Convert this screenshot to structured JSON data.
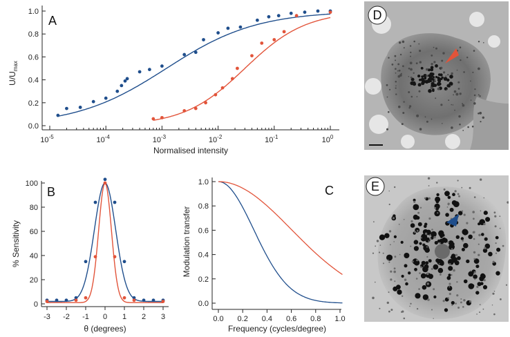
{
  "colors": {
    "blue": "#1f4e8c",
    "red": "#e2543a",
    "axis": "#222222"
  },
  "panels": {
    "A": "A",
    "B": "B",
    "C": "C",
    "D": "D",
    "E": "E"
  },
  "chart_data": [
    {
      "id": "A",
      "type": "scatter",
      "xscale": "log",
      "xlabel": "Normalised intensity",
      "ylabel": "U/U",
      "ylabel_sub": "max",
      "xlim": [
        1e-05,
        1
      ],
      "ylim": [
        0,
        1
      ],
      "xticks": [
        "10",
        "10",
        "10",
        "10",
        "10",
        "10"
      ],
      "xtick_exp": [
        "-5",
        "-4",
        "-3",
        "-2",
        "-1",
        "0"
      ],
      "xtick_values": [
        1e-05,
        0.0001,
        0.001,
        0.01,
        0.1,
        1
      ],
      "yticks": [
        "0.0",
        "0.2",
        "0.4",
        "0.6",
        "0.8",
        "1.0"
      ],
      "ytick_values": [
        0,
        0.2,
        0.4,
        0.6,
        0.8,
        1.0
      ],
      "series": [
        {
          "color": "blue",
          "points": [
            [
              1.4e-05,
              0.09
            ],
            [
              2e-05,
              0.15
            ],
            [
              3.5e-05,
              0.16
            ],
            [
              6e-05,
              0.21
            ],
            [
              0.0001,
              0.24
            ],
            [
              0.00016,
              0.3
            ],
            [
              0.00019,
              0.35
            ],
            [
              0.00022,
              0.39
            ],
            [
              0.00024,
              0.41
            ],
            [
              0.0004,
              0.47
            ],
            [
              0.0006,
              0.49
            ],
            [
              0.001,
              0.52
            ],
            [
              0.0025,
              0.62
            ],
            [
              0.004,
              0.64
            ],
            [
              0.0055,
              0.75
            ],
            [
              0.01,
              0.81
            ],
            [
              0.015,
              0.85
            ],
            [
              0.025,
              0.86
            ],
            [
              0.05,
              0.92
            ],
            [
              0.08,
              0.95
            ],
            [
              0.12,
              0.96
            ],
            [
              0.2,
              0.98
            ],
            [
              0.35,
              0.99
            ],
            [
              0.6,
              1.0
            ],
            [
              1.0,
              1.0
            ]
          ],
          "curve": {
            "x50": 0.0012,
            "slope": 0.54
          }
        },
        {
          "color": "red",
          "points": [
            [
              0.0007,
              0.06
            ],
            [
              0.001,
              0.07
            ],
            [
              0.0025,
              0.13
            ],
            [
              0.004,
              0.15
            ],
            [
              0.006,
              0.2
            ],
            [
              0.009,
              0.27
            ],
            [
              0.012,
              0.33
            ],
            [
              0.018,
              0.41
            ],
            [
              0.022,
              0.5
            ],
            [
              0.04,
              0.61
            ],
            [
              0.06,
              0.72
            ],
            [
              0.1,
              0.75
            ],
            [
              0.15,
              0.82
            ],
            [
              0.25,
              0.96
            ],
            [
              1.0,
              0.99
            ]
          ],
          "curve": {
            "x50": 0.03,
            "slope": 0.8
          }
        }
      ]
    },
    {
      "id": "B",
      "type": "scatter",
      "xlabel": "θ (degrees)",
      "ylabel": "% Sensitivity",
      "xlim": [
        -3.2,
        3.2
      ],
      "ylim": [
        0,
        105
      ],
      "xticks": [
        "-3",
        "-2",
        "-1",
        "0",
        "1",
        "2",
        "3"
      ],
      "xtick_values": [
        -3,
        -2,
        -1,
        0,
        1,
        2,
        3
      ],
      "yticks": [
        "0",
        "20",
        "40",
        "60",
        "80",
        "100"
      ],
      "ytick_values": [
        0,
        20,
        40,
        60,
        80,
        100
      ],
      "series": [
        {
          "color": "blue",
          "points": [
            [
              -3,
              3
            ],
            [
              -2.5,
              3
            ],
            [
              -2,
              3
            ],
            [
              -1.5,
              5
            ],
            [
              -1,
              35
            ],
            [
              -0.5,
              84
            ],
            [
              0,
              103
            ],
            [
              0.5,
              84
            ],
            [
              1,
              35
            ],
            [
              1.5,
              5
            ],
            [
              2,
              3
            ],
            [
              2.5,
              3
            ],
            [
              3,
              3
            ]
          ],
          "curve": {
            "sigma": 0.55,
            "floor": 2,
            "peak": 100
          }
        },
        {
          "color": "red",
          "points": [
            [
              -3,
              2
            ],
            [
              -1.5,
              3
            ],
            [
              -1,
              5
            ],
            [
              -0.5,
              39
            ],
            [
              0,
              100
            ],
            [
              0.5,
              39
            ],
            [
              1,
              5
            ],
            [
              1.5,
              3
            ],
            [
              3,
              2
            ]
          ],
          "curve": {
            "sigma": 0.33,
            "floor": 1,
            "peak": 100
          }
        }
      ]
    },
    {
      "id": "C",
      "type": "line",
      "xlabel": "Frequency (cycles/degree)",
      "ylabel": "Modulation transfer",
      "xlim": [
        0,
        1.0
      ],
      "ylim": [
        0,
        1.0
      ],
      "xticks": [
        "0.0",
        "0.2",
        "0.4",
        "0.6",
        "0.8",
        "1.0"
      ],
      "xtick_values": [
        0,
        0.2,
        0.4,
        0.6,
        0.8,
        1.0
      ],
      "yticks": [
        "0.0",
        "0.2",
        "0.4",
        "0.6",
        "0.8",
        "1.0"
      ],
      "ytick_values": [
        0,
        0.2,
        0.4,
        0.6,
        0.8,
        1.0
      ],
      "series": [
        {
          "color": "blue",
          "gauss_k": 0.29
        },
        {
          "color": "red",
          "gauss_k": 0.6
        }
      ]
    }
  ]
}
